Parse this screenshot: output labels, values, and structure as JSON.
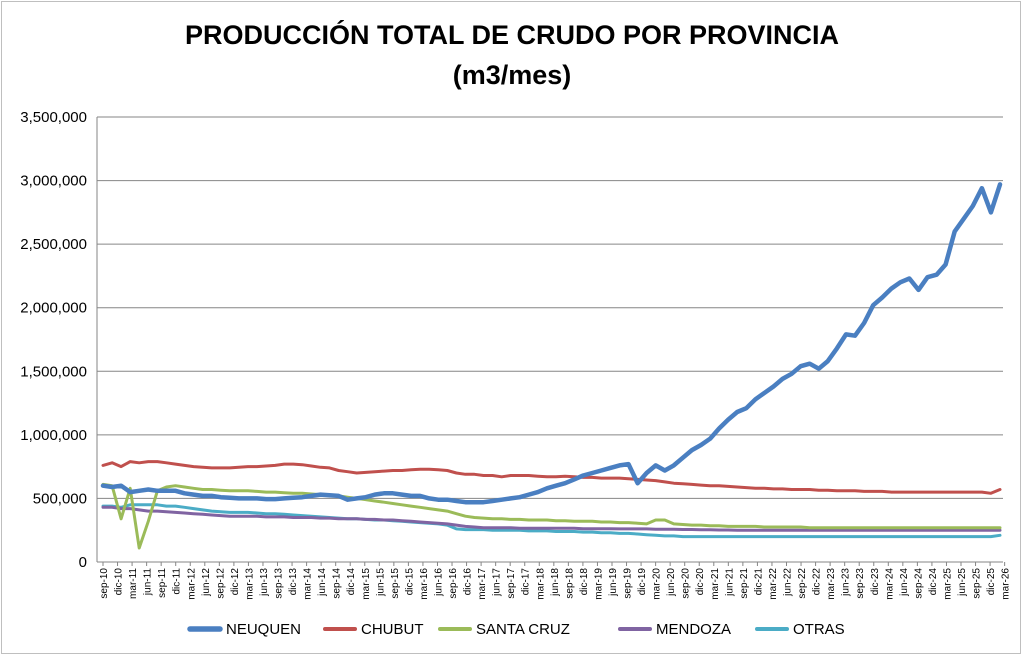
{
  "chart_data": {
    "type": "line",
    "title": "PRODUCCIÓN TOTAL DE CRUDO POR PROVINCIA",
    "subtitle": "(m3/mes)",
    "xlabel": "",
    "ylabel": "",
    "ylim": [
      0,
      3500000
    ],
    "yticks": [
      0,
      500000,
      1000000,
      1500000,
      2000000,
      2500000,
      3000000,
      3500000
    ],
    "ytick_labels": [
      "0",
      "500,000",
      "1,000,000",
      "1,500,000",
      "2,000,000",
      "2,500,000",
      "3,000,000",
      "3,500,000"
    ],
    "xtick_labels": [
      "sep-10",
      "dic-10",
      "mar-11",
      "jun-11",
      "sep-11",
      "dic-11",
      "mar-12",
      "jun-12",
      "sep-12",
      "dic-12",
      "mar-13",
      "jun-13",
      "sep-13",
      "dic-13",
      "mar-14",
      "jun-14",
      "sep-14",
      "dic-14",
      "mar-15",
      "jun-15",
      "sep-15",
      "dic-15",
      "mar-16",
      "jun-16",
      "sep-16",
      "dic-16",
      "mar-17",
      "jun-17",
      "sep-17",
      "dic-17",
      "mar-18",
      "jun-18",
      "sep-18",
      "dic-18",
      "mar-19",
      "jun-19",
      "sep-19",
      "dic-19",
      "mar-20",
      "jun-20",
      "sep-20",
      "dic-20",
      "mar-21",
      "jun-21",
      "sep-21",
      "dic-21",
      "mar-22",
      "jun-22",
      "sep-22",
      "dic-22",
      "mar-23",
      "jun-23",
      "sep-23",
      "dic-23",
      "mar-24",
      "jun-24",
      "sep-24",
      "dic-24",
      "mar-25",
      "jun-25",
      "sep-25",
      "dic-25",
      "mar-26"
    ],
    "grid": true,
    "legend_position": "bottom",
    "series": [
      {
        "name": "NEUQUEN",
        "color": "#4a7fc1",
        "width": 4.5,
        "values": [
          600000,
          590000,
          600000,
          550000,
          560000,
          570000,
          560000,
          560000,
          560000,
          540000,
          530000,
          520000,
          520000,
          510000,
          505000,
          500000,
          500000,
          500000,
          495000,
          495000,
          500000,
          505000,
          510000,
          520000,
          530000,
          525000,
          520000,
          490000,
          500000,
          510000,
          530000,
          540000,
          540000,
          530000,
          520000,
          520000,
          500000,
          490000,
          490000,
          480000,
          470000,
          470000,
          470000,
          480000,
          490000,
          500000,
          510000,
          530000,
          550000,
          580000,
          600000,
          620000,
          650000,
          680000,
          700000,
          720000,
          740000,
          760000,
          770000,
          620000,
          700000,
          760000,
          720000,
          760000,
          820000,
          880000,
          920000,
          970000,
          1050000,
          1120000,
          1180000,
          1210000,
          1280000,
          1330000,
          1380000,
          1440000,
          1480000,
          1540000,
          1560000,
          1520000,
          1580000,
          1680000,
          1790000,
          1780000,
          1880000,
          2020000,
          2080000,
          2150000,
          2200000,
          2230000,
          2140000,
          2240000,
          2260000,
          2340000,
          2600000,
          2700000,
          2800000,
          2940000,
          2750000,
          2970000
        ]
      },
      {
        "name": "CHUBUT",
        "color": "#c0504d",
        "width": 3,
        "values": [
          760000,
          780000,
          750000,
          790000,
          780000,
          790000,
          790000,
          780000,
          770000,
          760000,
          750000,
          745000,
          740000,
          740000,
          740000,
          745000,
          750000,
          750000,
          755000,
          760000,
          770000,
          770000,
          765000,
          755000,
          745000,
          740000,
          720000,
          710000,
          700000,
          705000,
          710000,
          715000,
          720000,
          720000,
          725000,
          730000,
          730000,
          725000,
          720000,
          700000,
          690000,
          690000,
          680000,
          680000,
          670000,
          680000,
          680000,
          680000,
          675000,
          670000,
          670000,
          675000,
          670000,
          665000,
          665000,
          660000,
          660000,
          660000,
          655000,
          650000,
          645000,
          640000,
          630000,
          620000,
          615000,
          610000,
          605000,
          600000,
          600000,
          595000,
          590000,
          585000,
          580000,
          580000,
          575000,
          575000,
          570000,
          570000,
          570000,
          565000,
          565000,
          560000,
          560000,
          560000,
          555000,
          555000,
          555000,
          550000,
          550000,
          550000,
          550000,
          550000,
          550000,
          550000,
          550000,
          550000,
          550000,
          550000,
          540000,
          570000
        ]
      },
      {
        "name": "SANTA CRUZ",
        "color": "#9bbb59",
        "width": 3,
        "values": [
          610000,
          600000,
          340000,
          580000,
          110000,
          320000,
          560000,
          590000,
          600000,
          590000,
          580000,
          570000,
          570000,
          565000,
          560000,
          560000,
          560000,
          555000,
          550000,
          550000,
          545000,
          540000,
          540000,
          535000,
          530000,
          525000,
          520000,
          510000,
          500000,
          490000,
          480000,
          470000,
          460000,
          450000,
          440000,
          430000,
          420000,
          410000,
          400000,
          380000,
          360000,
          350000,
          345000,
          340000,
          340000,
          335000,
          335000,
          330000,
          330000,
          330000,
          325000,
          325000,
          320000,
          320000,
          320000,
          315000,
          315000,
          310000,
          310000,
          305000,
          300000,
          330000,
          330000,
          300000,
          295000,
          290000,
          290000,
          285000,
          285000,
          280000,
          280000,
          280000,
          280000,
          275000,
          275000,
          275000,
          275000,
          275000,
          270000,
          270000,
          270000,
          270000,
          270000,
          270000,
          270000,
          270000,
          270000,
          270000,
          270000,
          270000,
          270000,
          270000,
          270000,
          270000,
          270000,
          270000,
          270000,
          270000,
          270000,
          270000
        ]
      },
      {
        "name": "MENDOZA",
        "color": "#8064a2",
        "width": 3,
        "values": [
          430000,
          430000,
          420000,
          420000,
          410000,
          400000,
          400000,
          395000,
          390000,
          385000,
          380000,
          375000,
          370000,
          365000,
          360000,
          360000,
          360000,
          360000,
          355000,
          355000,
          355000,
          350000,
          350000,
          350000,
          345000,
          345000,
          340000,
          340000,
          340000,
          335000,
          335000,
          330000,
          330000,
          325000,
          320000,
          315000,
          310000,
          305000,
          300000,
          290000,
          280000,
          275000,
          270000,
          270000,
          270000,
          270000,
          265000,
          265000,
          265000,
          265000,
          265000,
          265000,
          265000,
          262000,
          262000,
          262000,
          262000,
          260000,
          260000,
          260000,
          260000,
          258000,
          258000,
          258000,
          256000,
          256000,
          254000,
          254000,
          252000,
          252000,
          250000,
          250000,
          250000,
          250000,
          250000,
          250000,
          250000,
          250000,
          250000,
          250000,
          250000,
          250000,
          250000,
          250000,
          250000,
          250000,
          250000,
          250000,
          250000,
          250000,
          250000,
          250000,
          250000,
          250000,
          250000,
          250000,
          250000,
          250000,
          250000,
          250000
        ]
      },
      {
        "name": "OTRAS",
        "color": "#4bacc6",
        "width": 3,
        "values": [
          440000,
          440000,
          430000,
          450000,
          450000,
          450000,
          450000,
          440000,
          440000,
          430000,
          420000,
          410000,
          400000,
          395000,
          390000,
          390000,
          390000,
          385000,
          380000,
          380000,
          375000,
          370000,
          365000,
          360000,
          355000,
          350000,
          345000,
          340000,
          340000,
          335000,
          330000,
          330000,
          325000,
          320000,
          315000,
          310000,
          305000,
          300000,
          290000,
          260000,
          255000,
          255000,
          255000,
          250000,
          250000,
          250000,
          250000,
          245000,
          245000,
          245000,
          240000,
          240000,
          240000,
          235000,
          235000,
          230000,
          230000,
          225000,
          225000,
          220000,
          215000,
          210000,
          205000,
          205000,
          200000,
          200000,
          200000,
          200000,
          200000,
          200000,
          200000,
          200000,
          200000,
          200000,
          200000,
          200000,
          200000,
          200000,
          200000,
          200000,
          200000,
          200000,
          200000,
          200000,
          200000,
          200000,
          200000,
          200000,
          200000,
          200000,
          200000,
          200000,
          200000,
          200000,
          200000,
          200000,
          200000,
          200000,
          200000,
          210000
        ]
      }
    ]
  }
}
